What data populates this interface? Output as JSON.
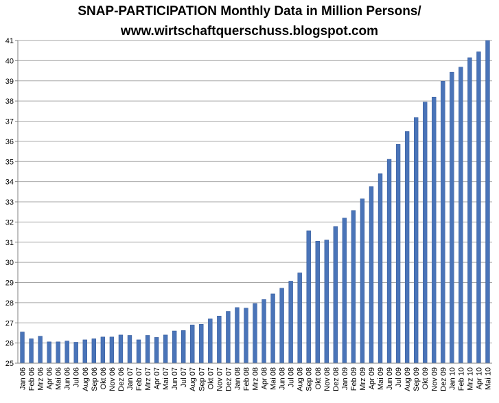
{
  "chart_data": {
    "type": "bar",
    "title_line1": "SNAP-PARTICIPATION Monthly Data in Million Persons/",
    "title_line2": "www.wirtschaftquerschuss.blogspot.com",
    "xlabel": "",
    "ylabel": "",
    "ylim": [
      25,
      41
    ],
    "yticks": [
      25,
      26,
      27,
      28,
      29,
      30,
      31,
      32,
      33,
      34,
      35,
      36,
      37,
      38,
      39,
      40,
      41
    ],
    "grid": true,
    "legend": "none",
    "bar_color": "#4a74b8",
    "categories": [
      "Jan 06",
      "Feb 06",
      "Mrz 06",
      "Apr 06",
      "Mai 06",
      "Jun 06",
      "Jul 06",
      "Aug 06",
      "Sep 06",
      "Okt 06",
      "Nov 06",
      "Dez 06",
      "Jan 07",
      "Feb 07",
      "Mrz 07",
      "Apr 07",
      "Mai 07",
      "Jun 07",
      "Jul 07",
      "Aug 07",
      "Sep 07",
      "Okt 07",
      "Nov 07",
      "Dez 07",
      "Jan 08",
      "Feb 08",
      "Mrz 08",
      "Apr 08",
      "Mai 08",
      "Jun 08",
      "Jul 08",
      "Aug 08",
      "Sep 08",
      "Okt 08",
      "Nov 08",
      "Dez 08",
      "Jan 09",
      "Feb 09",
      "Mrz 09",
      "Apr 09",
      "Mai 09",
      "Jun 09",
      "Jul 09",
      "Aug 09",
      "Sep 09",
      "Okt 09",
      "Nov 09",
      "Dez 09",
      "Jan 10",
      "Feb 10",
      "Mrz 10",
      "Apr 10",
      "Mai 10"
    ],
    "values": [
      26.55,
      26.21,
      26.34,
      26.06,
      26.06,
      26.1,
      26.04,
      26.16,
      26.21,
      26.3,
      26.3,
      26.4,
      26.38,
      26.16,
      26.38,
      26.28,
      26.4,
      26.6,
      26.62,
      26.9,
      26.93,
      27.2,
      27.34,
      27.57,
      27.76,
      27.73,
      27.96,
      28.16,
      28.44,
      28.72,
      29.07,
      29.48,
      31.57,
      31.05,
      31.11,
      31.78,
      32.2,
      32.57,
      33.15,
      33.76,
      34.4,
      35.11,
      35.85,
      36.49,
      37.18,
      37.95,
      38.2,
      38.98,
      39.43,
      39.68,
      40.15,
      40.44,
      41.0
    ]
  }
}
